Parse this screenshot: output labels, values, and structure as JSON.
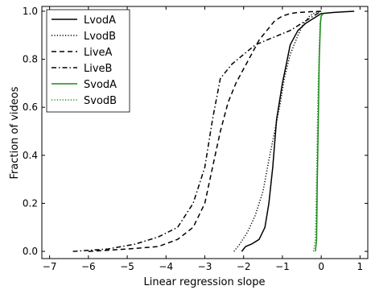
{
  "chart_data": {
    "type": "line",
    "xlabel": "Linear regression slope",
    "ylabel": "Fraction of videos",
    "xlim": [
      -7.2,
      1.2
    ],
    "ylim": [
      -0.03,
      1.02
    ],
    "xticks": [
      -7,
      -6,
      -5,
      -4,
      -3,
      -2,
      -1,
      0,
      1
    ],
    "xtick_labels": [
      "−7",
      "−6",
      "−5",
      "−4",
      "−3",
      "−2",
      "−1",
      "0",
      "1"
    ],
    "yticks": [
      0.0,
      0.2,
      0.4,
      0.6,
      0.8,
      1.0
    ],
    "ytick_labels": [
      "0.0",
      "0.2",
      "0.4",
      "0.6",
      "0.8",
      "1.0"
    ],
    "grid": false,
    "legend": "top-left",
    "series": [
      {
        "name": "LvodA",
        "color": "#000000",
        "dash": "solid",
        "x": [
          -2.05,
          -1.95,
          -1.8,
          -1.6,
          -1.45,
          -1.35,
          -1.25,
          -1.15,
          -1.0,
          -0.9,
          -0.8,
          -0.6,
          -0.4,
          -0.2,
          0.0,
          0.3,
          0.6,
          0.85
        ],
        "y": [
          0.0,
          0.02,
          0.03,
          0.05,
          0.1,
          0.2,
          0.35,
          0.55,
          0.7,
          0.78,
          0.86,
          0.92,
          0.95,
          0.97,
          0.99,
          0.995,
          0.998,
          1.0
        ]
      },
      {
        "name": "LvodB",
        "color": "#000000",
        "dash": "dotted",
        "x": [
          -2.25,
          -2.1,
          -1.9,
          -1.7,
          -1.5,
          -1.35,
          -1.2,
          -1.05,
          -0.95,
          -0.8,
          -0.6,
          -0.45,
          -0.3,
          -0.15,
          0.0
        ],
        "y": [
          0.0,
          0.03,
          0.08,
          0.15,
          0.25,
          0.38,
          0.5,
          0.62,
          0.72,
          0.82,
          0.9,
          0.95,
          0.98,
          0.995,
          1.0
        ]
      },
      {
        "name": "LiveA",
        "color": "#000000",
        "dash": "dashed",
        "x": [
          -6.0,
          -5.0,
          -4.2,
          -3.7,
          -3.3,
          -3.0,
          -2.8,
          -2.6,
          -2.4,
          -2.2,
          -2.0,
          -1.8,
          -1.6,
          -1.4,
          -1.2,
          -1.0,
          -0.8,
          -0.6,
          -0.3,
          0.0
        ],
        "y": [
          0.0,
          0.01,
          0.02,
          0.05,
          0.1,
          0.2,
          0.35,
          0.5,
          0.62,
          0.7,
          0.76,
          0.82,
          0.88,
          0.92,
          0.96,
          0.98,
          0.99,
          0.995,
          0.998,
          1.0
        ]
      },
      {
        "name": "LiveB",
        "color": "#000000",
        "dash": "dashdot",
        "x": [
          -6.4,
          -5.5,
          -4.8,
          -4.2,
          -3.7,
          -3.3,
          -3.0,
          -2.8,
          -2.6,
          -2.3,
          -2.0,
          -1.7,
          -1.4,
          -1.1,
          -0.8,
          -0.5,
          -0.2,
          0.0
        ],
        "y": [
          0.0,
          0.01,
          0.03,
          0.06,
          0.1,
          0.2,
          0.35,
          0.55,
          0.72,
          0.78,
          0.82,
          0.86,
          0.88,
          0.9,
          0.92,
          0.95,
          0.98,
          1.0
        ]
      },
      {
        "name": "SvodA",
        "color": "#1a8a1a",
        "dash": "solid",
        "x": [
          -0.15,
          -0.12,
          -0.1,
          -0.07,
          -0.05,
          -0.02,
          0.0,
          0.05
        ],
        "y": [
          0.0,
          0.05,
          0.3,
          0.6,
          0.8,
          0.95,
          0.98,
          0.99
        ]
      },
      {
        "name": "SvodB",
        "color": "#1a8a1a",
        "dash": "dotted",
        "x": [
          -0.2,
          -0.15,
          -0.12,
          -0.09,
          -0.06,
          -0.03,
          0.0,
          0.05
        ],
        "y": [
          0.0,
          0.05,
          0.3,
          0.6,
          0.8,
          0.95,
          0.98,
          0.99
        ]
      }
    ]
  }
}
